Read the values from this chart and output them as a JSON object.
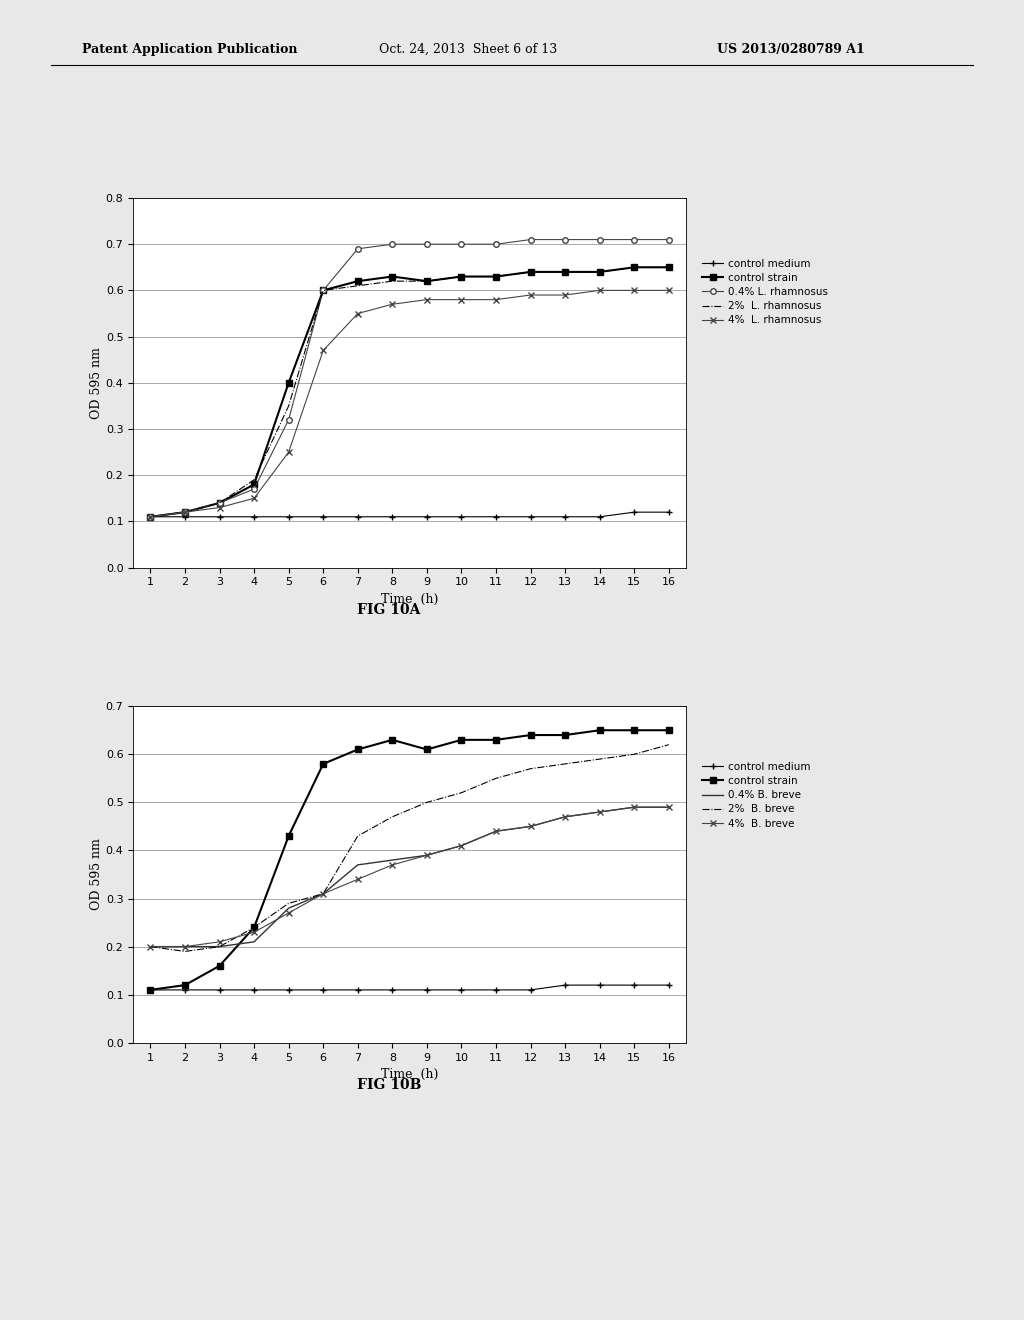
{
  "header_left": "Patent Application Publication",
  "header_center": "Oct. 24, 2013  Sheet 6 of 13",
  "header_right": "US 2013/0280789 A1",
  "fig10a": {
    "title": "FIG 10A",
    "xlabel": "Time  (h)",
    "ylabel": "OD 595 nm",
    "xlim": [
      0.5,
      16.5
    ],
    "ylim": [
      0,
      0.8
    ],
    "yticks": [
      0,
      0.1,
      0.2,
      0.3,
      0.4,
      0.5,
      0.6,
      0.7,
      0.8
    ],
    "xticks": [
      1,
      2,
      3,
      4,
      5,
      6,
      7,
      8,
      9,
      10,
      11,
      12,
      13,
      14,
      15,
      16
    ],
    "series": [
      {
        "key": "control_medium",
        "label": "control medium",
        "x": [
          1,
          2,
          3,
          4,
          5,
          6,
          7,
          8,
          9,
          10,
          11,
          12,
          13,
          14,
          15,
          16
        ],
        "y": [
          0.11,
          0.11,
          0.11,
          0.11,
          0.11,
          0.11,
          0.11,
          0.11,
          0.11,
          0.11,
          0.11,
          0.11,
          0.11,
          0.11,
          0.12,
          0.12
        ],
        "linestyle": "-",
        "marker": "+",
        "color": "#000000",
        "linewidth": 0.8,
        "markersize": 5,
        "markerfacecolor": "#000000"
      },
      {
        "key": "control_strain",
        "label": "control strain",
        "x": [
          1,
          2,
          3,
          4,
          5,
          6,
          7,
          8,
          9,
          10,
          11,
          12,
          13,
          14,
          15,
          16
        ],
        "y": [
          0.11,
          0.12,
          0.14,
          0.18,
          0.4,
          0.6,
          0.62,
          0.63,
          0.62,
          0.63,
          0.63,
          0.64,
          0.64,
          0.64,
          0.65,
          0.65
        ],
        "linestyle": "-",
        "marker": "s",
        "color": "#000000",
        "linewidth": 1.5,
        "markersize": 4,
        "markerfacecolor": "#000000"
      },
      {
        "key": "rhamnosus_04",
        "label": "0.4% L. rhamnosus",
        "x": [
          1,
          2,
          3,
          4,
          5,
          6,
          7,
          8,
          9,
          10,
          11,
          12,
          13,
          14,
          15,
          16
        ],
        "y": [
          0.11,
          0.12,
          0.14,
          0.17,
          0.32,
          0.6,
          0.69,
          0.7,
          0.7,
          0.7,
          0.7,
          0.71,
          0.71,
          0.71,
          0.71,
          0.71
        ],
        "linestyle": "-",
        "marker": "o",
        "color": "#444444",
        "linewidth": 0.8,
        "markersize": 4,
        "markerfacecolor": "white"
      },
      {
        "key": "rhamnosus_2",
        "label": "2%  L. rhamnosus",
        "x": [
          1,
          2,
          3,
          4,
          5,
          6,
          7,
          8,
          9,
          10,
          11,
          12,
          13,
          14,
          15,
          16
        ],
        "y": [
          0.11,
          0.12,
          0.14,
          0.19,
          0.35,
          0.6,
          0.61,
          0.62,
          0.62,
          0.63,
          0.63,
          0.64,
          0.64,
          0.64,
          0.65,
          0.65
        ],
        "linestyle": "-.",
        "marker": "None",
        "color": "#000000",
        "linewidth": 0.8,
        "markersize": 4,
        "markerfacecolor": "#000000"
      },
      {
        "key": "rhamnosus_4",
        "label": "4%  L. rhamnosus",
        "x": [
          1,
          2,
          3,
          4,
          5,
          6,
          7,
          8,
          9,
          10,
          11,
          12,
          13,
          14,
          15,
          16
        ],
        "y": [
          0.11,
          0.12,
          0.13,
          0.15,
          0.25,
          0.47,
          0.55,
          0.57,
          0.58,
          0.58,
          0.58,
          0.59,
          0.59,
          0.6,
          0.6,
          0.6
        ],
        "linestyle": "-",
        "marker": "x",
        "color": "#444444",
        "linewidth": 0.8,
        "markersize": 5,
        "markerfacecolor": "#444444"
      }
    ]
  },
  "fig10b": {
    "title": "FIG 10B",
    "xlabel": "Time  (h)",
    "ylabel": "OD 595 nm",
    "xlim": [
      0.5,
      16.5
    ],
    "ylim": [
      0,
      0.7
    ],
    "yticks": [
      0,
      0.1,
      0.2,
      0.3,
      0.4,
      0.5,
      0.6,
      0.7
    ],
    "xticks": [
      1,
      2,
      3,
      4,
      5,
      6,
      7,
      8,
      9,
      10,
      11,
      12,
      13,
      14,
      15,
      16
    ],
    "series": [
      {
        "key": "control_medium",
        "label": "control medium",
        "x": [
          1,
          2,
          3,
          4,
          5,
          6,
          7,
          8,
          9,
          10,
          11,
          12,
          13,
          14,
          15,
          16
        ],
        "y": [
          0.11,
          0.11,
          0.11,
          0.11,
          0.11,
          0.11,
          0.11,
          0.11,
          0.11,
          0.11,
          0.11,
          0.11,
          0.12,
          0.12,
          0.12,
          0.12
        ],
        "linestyle": "-",
        "marker": "+",
        "color": "#000000",
        "linewidth": 0.8,
        "markersize": 5,
        "markerfacecolor": "#000000"
      },
      {
        "key": "control_strain",
        "label": "control strain",
        "x": [
          1,
          2,
          3,
          4,
          5,
          6,
          7,
          8,
          9,
          10,
          11,
          12,
          13,
          14,
          15,
          16
        ],
        "y": [
          0.11,
          0.12,
          0.16,
          0.24,
          0.43,
          0.58,
          0.61,
          0.63,
          0.61,
          0.63,
          0.63,
          0.64,
          0.64,
          0.65,
          0.65,
          0.65
        ],
        "linestyle": "-",
        "marker": "s",
        "color": "#000000",
        "linewidth": 1.5,
        "markersize": 4,
        "markerfacecolor": "#000000"
      },
      {
        "key": "breve_04",
        "label": "0.4% B. breve",
        "x": [
          1,
          2,
          3,
          4,
          5,
          6,
          7,
          8,
          9,
          10,
          11,
          12,
          13,
          14,
          15,
          16
        ],
        "y": [
          0.2,
          0.2,
          0.2,
          0.21,
          0.28,
          0.31,
          0.37,
          0.38,
          0.39,
          0.41,
          0.44,
          0.45,
          0.47,
          0.48,
          0.49,
          0.49
        ],
        "linestyle": "-",
        "marker": "None",
        "color": "#333333",
        "linewidth": 1.0,
        "markersize": 4,
        "markerfacecolor": "#333333"
      },
      {
        "key": "breve_2",
        "label": "2%  B. breve",
        "x": [
          1,
          2,
          3,
          4,
          5,
          6,
          7,
          8,
          9,
          10,
          11,
          12,
          13,
          14,
          15,
          16
        ],
        "y": [
          0.2,
          0.19,
          0.2,
          0.24,
          0.29,
          0.31,
          0.43,
          0.47,
          0.5,
          0.52,
          0.55,
          0.57,
          0.58,
          0.59,
          0.6,
          0.62
        ],
        "linestyle": "-.",
        "marker": "None",
        "color": "#000000",
        "linewidth": 0.8,
        "markersize": 4,
        "markerfacecolor": "#000000"
      },
      {
        "key": "breve_4",
        "label": "4%  B. breve",
        "x": [
          1,
          2,
          3,
          4,
          5,
          6,
          7,
          8,
          9,
          10,
          11,
          12,
          13,
          14,
          15,
          16
        ],
        "y": [
          0.2,
          0.2,
          0.21,
          0.23,
          0.27,
          0.31,
          0.34,
          0.37,
          0.39,
          0.41,
          0.44,
          0.45,
          0.47,
          0.48,
          0.49,
          0.49
        ],
        "linestyle": "-",
        "marker": "x",
        "color": "#444444",
        "linewidth": 0.8,
        "markersize": 5,
        "markerfacecolor": "#444444"
      }
    ]
  },
  "background_color": "#f0f0f0",
  "fig_text_color": "#000000"
}
